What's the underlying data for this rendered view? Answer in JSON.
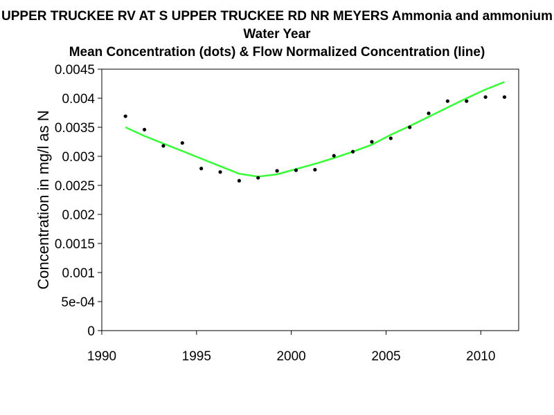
{
  "chart_data": {
    "type": "scatter",
    "title": "UPPER TRUCKEE RV AT S UPPER TRUCKEE RD NR MEYERS   Ammonia and ammonium",
    "subtitle_1": "Water Year",
    "subtitle_2": "Mean Concentration (dots) & Flow Normalized Concentration (line)",
    "ylabel": "Concentration in mg/l as N",
    "xlabel": "",
    "xlim": [
      1990,
      2012
    ],
    "ylim": [
      0,
      0.0045
    ],
    "x_ticks": [
      1990,
      1995,
      2000,
      2005,
      2010
    ],
    "x_tick_labels": [
      "1990",
      "1995",
      "2000",
      "2005",
      "2010"
    ],
    "y_ticks": [
      0,
      0.0005,
      0.001,
      0.0015,
      0.002,
      0.0025,
      0.003,
      0.0035,
      0.004,
      0.0045
    ],
    "y_tick_labels": [
      "0",
      "5e-04",
      "0.001",
      "0.0015",
      "0.002",
      "0.0025",
      "0.003",
      "0.0035",
      "0.004",
      "0.0045"
    ],
    "grid": false,
    "series": [
      {
        "kind": "points",
        "color": "#000000",
        "x": [
          1991.25,
          1992.25,
          1993.25,
          1994.25,
          1995.25,
          1996.25,
          1997.25,
          1998.25,
          1999.25,
          2000.25,
          2001.25,
          2002.25,
          2003.25,
          2004.25,
          2005.25,
          2006.25,
          2007.25,
          2008.25,
          2009.25,
          2010.25,
          2011.25
        ],
        "y": [
          0.00369,
          0.00346,
          0.00318,
          0.00323,
          0.00279,
          0.00273,
          0.00258,
          0.00263,
          0.00275,
          0.00276,
          0.00277,
          0.00301,
          0.00308,
          0.00325,
          0.00331,
          0.0035,
          0.00374,
          0.00395,
          0.00395,
          0.00402,
          0.00402
        ]
      },
      {
        "kind": "line",
        "color": "#33ff33",
        "x": [
          1991.25,
          1992.25,
          1993.25,
          1994.25,
          1995.25,
          1996.25,
          1997.25,
          1998.25,
          1999.25,
          2000.25,
          2001.25,
          2002.25,
          2003.25,
          2004.25,
          2005.25,
          2006.25,
          2007.25,
          2008.25,
          2009.25,
          2010.25,
          2011.25
        ],
        "y": [
          0.0035,
          0.00335,
          0.00322,
          0.00309,
          0.00296,
          0.00283,
          0.0027,
          0.00265,
          0.00269,
          0.00278,
          0.00287,
          0.00297,
          0.00308,
          0.0032,
          0.00337,
          0.00352,
          0.00368,
          0.00384,
          0.004,
          0.00415,
          0.00428
        ]
      }
    ]
  }
}
